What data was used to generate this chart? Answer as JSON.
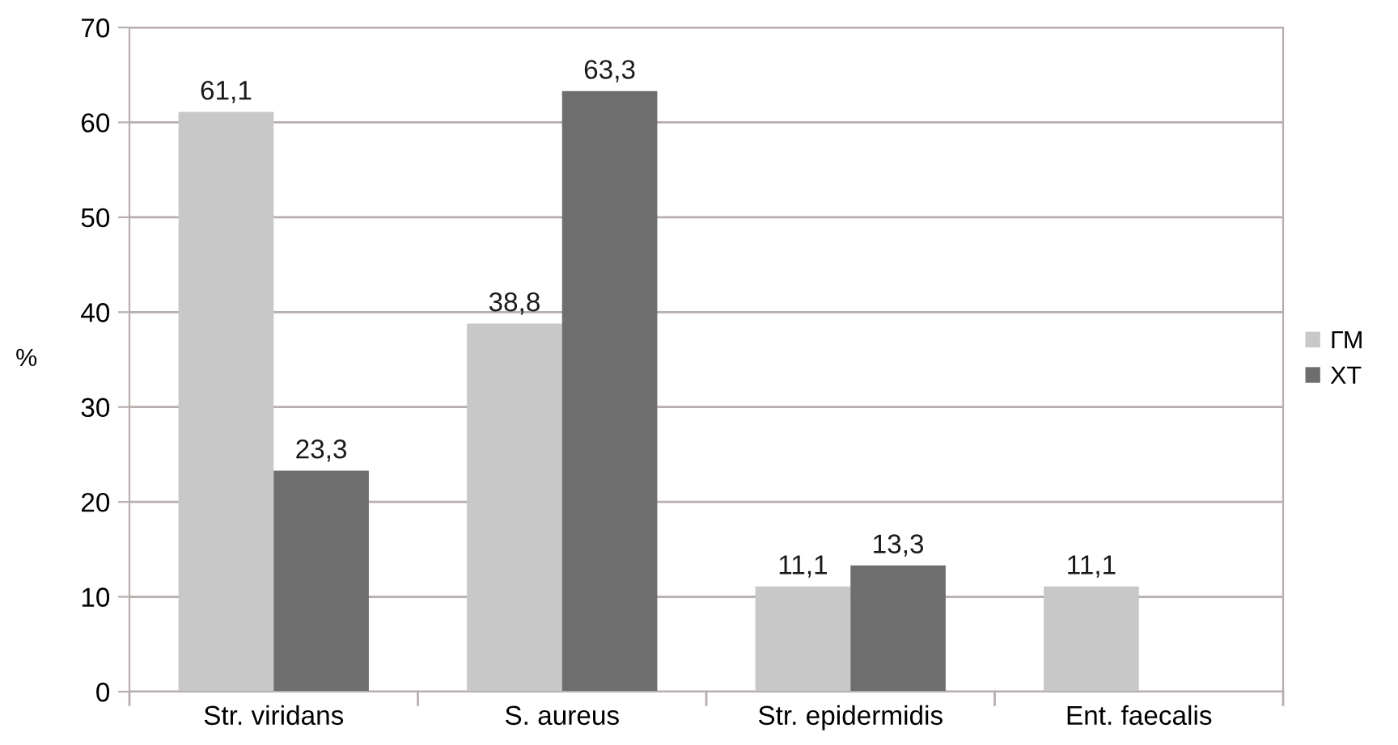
{
  "chart_data": {
    "type": "bar",
    "ylabel": "%",
    "categories": [
      "Str. viridans",
      "S. aureus",
      "Str. epidermidis",
      "Ent. faecalis"
    ],
    "series": [
      {
        "name": "ГМ",
        "color": "#c8c8c8",
        "values": [
          61.1,
          38.8,
          11.1,
          11.1
        ],
        "value_labels": [
          "61,1",
          "38,8",
          "11,1",
          "11,1"
        ]
      },
      {
        "name": "ХТ",
        "color": "#6e6e6e",
        "values": [
          23.3,
          63.3,
          13.3,
          null
        ],
        "value_labels": [
          "23,3",
          "63,3",
          "13,3",
          null
        ]
      }
    ],
    "ylim": [
      0,
      70
    ],
    "yticks": [
      0,
      10,
      20,
      30,
      40,
      50,
      60,
      70
    ],
    "grid": "y",
    "legend": "right"
  }
}
